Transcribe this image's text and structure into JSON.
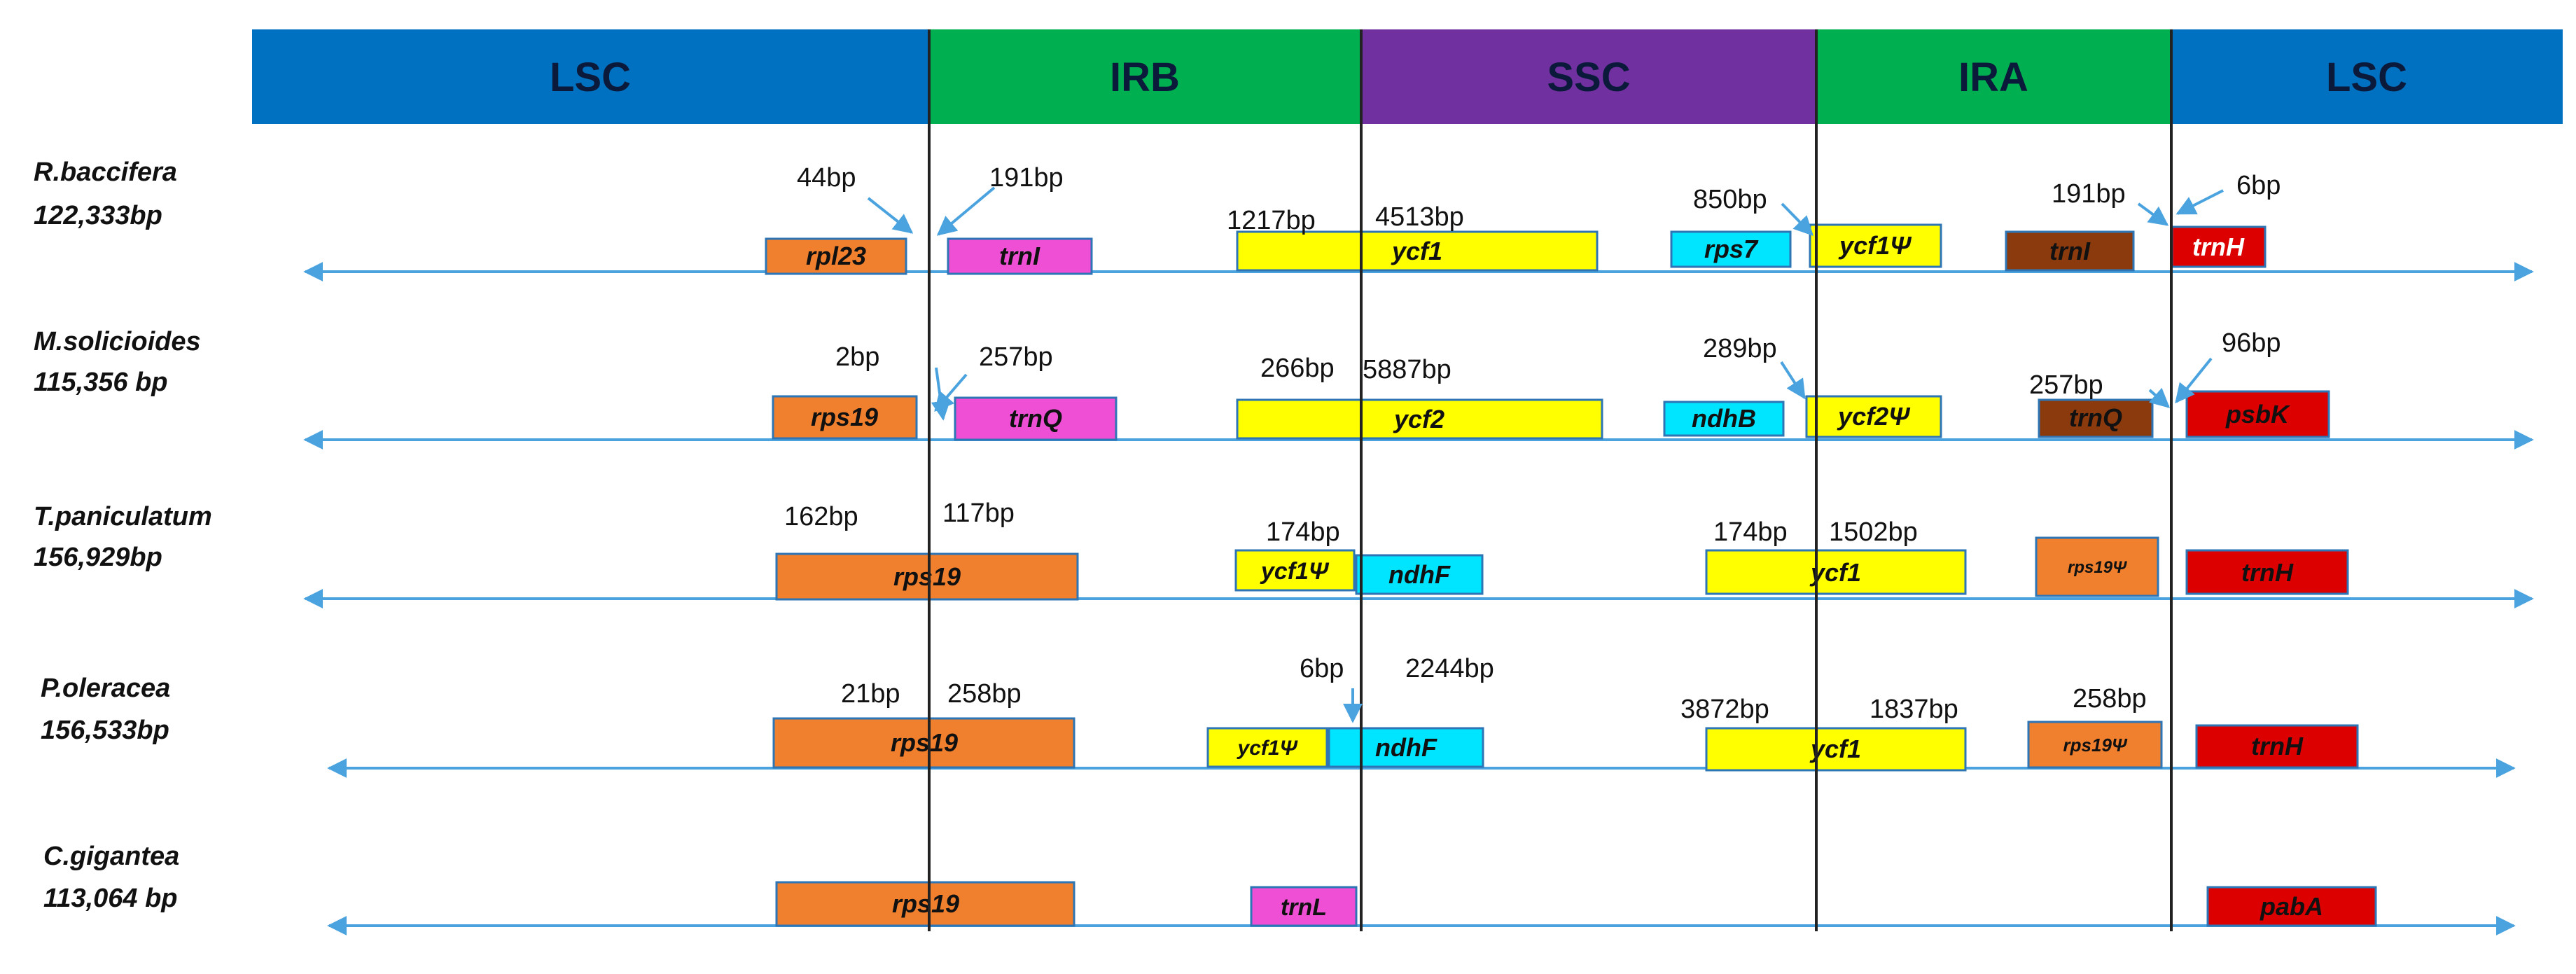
{
  "regions": [
    {
      "label": "LSC",
      "color": "#0070C0"
    },
    {
      "label": "IRB",
      "color": "#00B050"
    },
    {
      "label": "SSC",
      "color": "#7030A0"
    },
    {
      "label": "IRA",
      "color": "#00B050"
    },
    {
      "label": "LSC",
      "color": "#0070C0"
    }
  ],
  "colors": {
    "orange": "#F07F2E",
    "magenta": "#EE4FD4",
    "yellow": "#FFFF00",
    "cyan": "#00E5FF",
    "brown": "#8B3A0E",
    "red": "#DD0000",
    "line": "#4AA3DF",
    "gene_border": "#2E75B6",
    "boundary": "#222222"
  },
  "species": [
    {
      "name": "R.baccifera",
      "size": "122,333bp"
    },
    {
      "name": "M.solicioides",
      "size": "115,356 bp"
    },
    {
      "name": "T.paniculatum",
      "size": "156,929bp"
    },
    {
      "name": "P.oleracea",
      "size": "156,533bp"
    },
    {
      "name": "C.gigantea",
      "size": "113,064 bp"
    }
  ],
  "genes": [
    {
      "label": "rpl23",
      "color": "orange"
    },
    {
      "label": "trnI",
      "color": "magenta"
    },
    {
      "label": "ycf1",
      "color": "yellow"
    },
    {
      "label": "rps7",
      "color": "cyan"
    },
    {
      "label": "ycf1Ψ",
      "color": "yellow"
    },
    {
      "label": "trnI",
      "color": "brown"
    },
    {
      "label": "trnH",
      "color": "red"
    },
    {
      "label": "rps19",
      "color": "orange"
    },
    {
      "label": "trnQ",
      "color": "magenta"
    },
    {
      "label": "ycf2",
      "color": "yellow"
    },
    {
      "label": "ndhB",
      "color": "cyan"
    },
    {
      "label": "ycf2Ψ",
      "color": "yellow"
    },
    {
      "label": "trnQ",
      "color": "brown"
    },
    {
      "label": "psbK",
      "color": "red"
    },
    {
      "label": "rps19",
      "color": "orange"
    },
    {
      "label": "ycf1Ψ",
      "color": "yellow"
    },
    {
      "label": "ndhF",
      "color": "cyan"
    },
    {
      "label": "ycf1",
      "color": "yellow"
    },
    {
      "label": "rps19Ψ",
      "color": "orange"
    },
    {
      "label": "trnH",
      "color": "red"
    },
    {
      "label": "rps19",
      "color": "orange"
    },
    {
      "label": "ycf1Ψ",
      "color": "yellow"
    },
    {
      "label": "ndhF",
      "color": "cyan"
    },
    {
      "label": "ycf1",
      "color": "yellow"
    },
    {
      "label": "rps19Ψ",
      "color": "orange"
    },
    {
      "label": "trnH",
      "color": "red"
    },
    {
      "label": "rps19",
      "color": "orange"
    },
    {
      "label": "trnL",
      "color": "magenta"
    },
    {
      "label": "pabA",
      "color": "red"
    }
  ],
  "bp_labels": [
    "44bp",
    "191bp",
    "1217bp",
    "4513bp",
    "850bp",
    "191bp",
    "6bp",
    "2bp",
    "257bp",
    "266bp",
    "5887bp",
    "289bp",
    "257bp",
    "96bp",
    "162bp",
    "117bp",
    "174bp",
    "174bp",
    "1502bp",
    "21bp",
    "258bp",
    "6bp",
    "2244bp",
    "3872bp",
    "1837bp",
    "258bp"
  ]
}
